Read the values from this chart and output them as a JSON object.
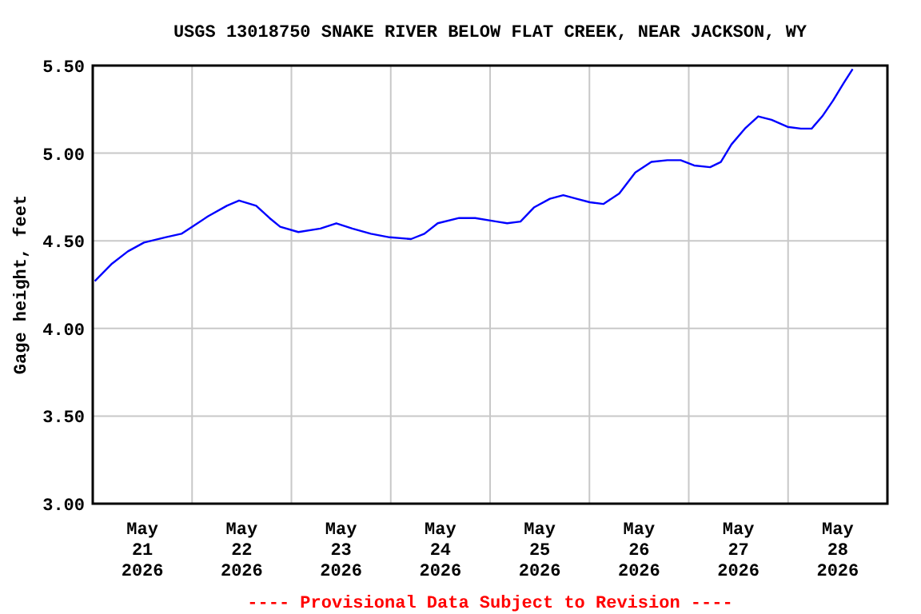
{
  "chart_data": {
    "type": "line",
    "title": "USGS 13018750 SNAKE RIVER BELOW FLAT CREEK, NEAR JACKSON, WY",
    "ylabel": "Gage height, feet",
    "annotations": [
      "---- Provisional Data Subject to Revision ----"
    ],
    "xlim": [
      "2026-05-21T00:00",
      "2026-05-29T00:00"
    ],
    "xticks": [
      {
        "value": "2026-05-21T00:00",
        "label": null
      },
      {
        "value": "2026-05-21T12:00",
        "label": "May\n21\n2026"
      },
      {
        "value": "2026-05-22T00:00",
        "label": null
      },
      {
        "value": "2026-05-22T12:00",
        "label": "May\n22\n2026"
      },
      {
        "value": "2026-05-23T00:00",
        "label": null
      },
      {
        "value": "2026-05-23T12:00",
        "label": "May\n23\n2026"
      },
      {
        "value": "2026-05-24T00:00",
        "label": null
      },
      {
        "value": "2026-05-24T12:00",
        "label": "May\n24\n2026"
      },
      {
        "value": "2026-05-25T00:00",
        "label": null
      },
      {
        "value": "2026-05-25T12:00",
        "label": "May\n25\n2026"
      },
      {
        "value": "2026-05-26T00:00",
        "label": null
      },
      {
        "value": "2026-05-26T12:00",
        "label": "May\n26\n2026"
      },
      {
        "value": "2026-05-27T00:00",
        "label": null
      },
      {
        "value": "2026-05-27T12:00",
        "label": "May\n27\n2026"
      },
      {
        "value": "2026-05-28T00:00",
        "label": null
      },
      {
        "value": "2026-05-28T12:00",
        "label": "May\n28\n2026"
      },
      {
        "value": "2026-05-29T00:00",
        "label": null
      }
    ],
    "ylim": [
      3.0,
      5.5
    ],
    "yticks": [
      {
        "value": 3.0,
        "label": "3.00"
      },
      {
        "value": 3.5,
        "label": "3.50"
      },
      {
        "value": 4.0,
        "label": "4.00"
      },
      {
        "value": 4.5,
        "label": "4.50"
      },
      {
        "value": 5.0,
        "label": "5.00"
      },
      {
        "value": 5.5,
        "label": "5.50"
      }
    ],
    "grid": true,
    "marker": "none",
    "line_style": "solid",
    "x": [
      "2026-05-21T00:30",
      "2026-05-21T04:40",
      "2026-05-21T08:30",
      "2026-05-21T12:23",
      "2026-05-21T17:32",
      "2026-05-21T21:25",
      "2026-05-22T00:00",
      "2026-05-22T03:52",
      "2026-05-22T08:24",
      "2026-05-22T11:21",
      "2026-05-22T15:29",
      "2026-05-22T18:43",
      "2026-05-22T21:17",
      "2026-05-23T01:41",
      "2026-05-23T07:00",
      "2026-05-23T10:51",
      "2026-05-23T14:43",
      "2026-05-23T19:12",
      "2026-05-23T23:44",
      "2026-05-24T04:54",
      "2026-05-24T08:08",
      "2026-05-24T11:21",
      "2026-05-24T16:31",
      "2026-05-24T20:24",
      "2026-05-25T01:33",
      "2026-05-25T04:08",
      "2026-05-25T07:21",
      "2026-05-25T10:35",
      "2026-05-25T14:27",
      "2026-05-25T17:41",
      "2026-05-25T20:54",
      "2026-05-26T00:07",
      "2026-05-26T03:22",
      "2026-05-26T07:13",
      "2026-05-26T11:05",
      "2026-05-26T14:58",
      "2026-05-26T18:50",
      "2026-05-26T22:03",
      "2026-05-27T01:18",
      "2026-05-27T05:10",
      "2026-05-27T07:45",
      "2026-05-27T10:19",
      "2026-05-27T13:33",
      "2026-05-27T16:47",
      "2026-05-27T20:01",
      "2026-05-27T23:53",
      "2026-05-28T03:06",
      "2026-05-28T05:41",
      "2026-05-28T08:15",
      "2026-05-28T10:51",
      "2026-05-28T13:26",
      "2026-05-28T15:36"
    ],
    "series": [
      {
        "color": "#0000ff",
        "values": [
          4.27,
          4.37,
          4.44,
          4.49,
          4.52,
          4.54,
          4.58,
          4.64,
          4.7,
          4.73,
          4.7,
          4.63,
          4.58,
          4.55,
          4.57,
          4.6,
          4.57,
          4.54,
          4.52,
          4.51,
          4.54,
          4.6,
          4.63,
          4.63,
          4.61,
          4.6,
          4.61,
          4.69,
          4.74,
          4.76,
          4.74,
          4.72,
          4.71,
          4.77,
          4.89,
          4.95,
          4.96,
          4.96,
          4.93,
          4.92,
          4.95,
          5.05,
          5.14,
          5.21,
          5.19,
          5.15,
          5.14,
          5.14,
          5.21,
          5.3,
          5.4,
          5.48
        ]
      }
    ]
  }
}
